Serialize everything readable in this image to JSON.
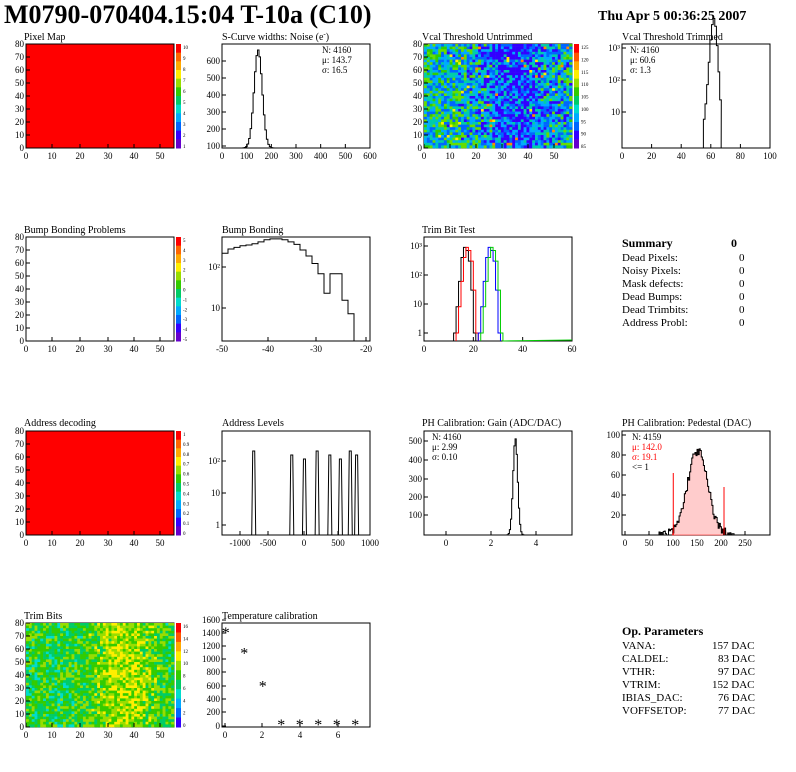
{
  "header": {
    "title": "M0790-070404.15:04 T-10a (C10)",
    "datetime": "Thu Apr  5 00:36:25 2007"
  },
  "colors": {
    "red_map": "#ff0000",
    "green_map": "#33dd44",
    "palette": [
      "#6600cc",
      "#3300ff",
      "#0066ff",
      "#00aaff",
      "#00ddcc",
      "#00cc66",
      "#33cc00",
      "#99dd00",
      "#ffee00",
      "#ffaa00",
      "#ff6600",
      "#ff0000"
    ]
  },
  "chart_data": [
    {
      "id": "pixel-map",
      "type": "heatmap",
      "title": "Pixel Map",
      "fill": "uniform red",
      "xticks": [
        "0",
        "10",
        "20",
        "30",
        "40",
        "50"
      ],
      "yticks": [
        "0",
        "10",
        "20",
        "30",
        "40",
        "50",
        "60",
        "70",
        "80"
      ],
      "palette_labels": [
        "10",
        "9",
        "8",
        "7",
        "6",
        "5",
        "4",
        "3",
        "2",
        "1"
      ]
    },
    {
      "id": "scurve",
      "type": "histogram",
      "title": "S-Curve widths: Noise (e",
      "title_sup": "-",
      "title_tail": ")",
      "xticks": [
        "0",
        "100",
        "200",
        "300",
        "400",
        "500",
        "600"
      ],
      "yticks": [
        "100",
        "200",
        "300",
        "400",
        "500",
        "600"
      ],
      "stats": [
        "N: 4160",
        "μ: 143.7",
        "σ: 16.5"
      ],
      "peak_x": 143.7,
      "peak_y": 660,
      "sigma": 16.5,
      "xlim": [
        0,
        600
      ],
      "ylim": [
        0,
        700
      ]
    },
    {
      "id": "vcal-untrimmed",
      "type": "heatmap",
      "title": "Vcal Threshold Untrimmed",
      "xticks": [
        "0",
        "10",
        "20",
        "30",
        "40",
        "50"
      ],
      "yticks": [
        "0",
        "10",
        "20",
        "30",
        "40",
        "50",
        "60",
        "70",
        "80"
      ],
      "palette_labels": [
        "125",
        "120",
        "115",
        "110",
        "105",
        "100",
        "95",
        "90",
        "85"
      ]
    },
    {
      "id": "vcal-trimmed",
      "type": "histogram",
      "title": "Vcal Threshold Trimmed",
      "xticks": [
        "0",
        "20",
        "40",
        "60",
        "80",
        "100"
      ],
      "yticks": [
        "10",
        "10²",
        "10³"
      ],
      "stats": [
        "N: 4160",
        "μ: 60.6",
        "σ:  1.3"
      ],
      "log_y": true,
      "peak_x": 60.6,
      "sigma": 1.3,
      "xlim": [
        0,
        100
      ]
    },
    {
      "id": "bump-problems",
      "type": "heatmap",
      "title": "Bump Bonding Problems",
      "fill": "empty",
      "xticks": [
        "0",
        "10",
        "20",
        "30",
        "40",
        "50"
      ],
      "yticks": [
        "0",
        "10",
        "20",
        "30",
        "40",
        "50",
        "60",
        "70",
        "80"
      ],
      "palette_labels": [
        "5",
        "4",
        "3",
        "2",
        "1",
        "0",
        "-1",
        "-2",
        "-3",
        "-4",
        "-5"
      ]
    },
    {
      "id": "bump-bonding",
      "type": "histogram",
      "title": "Bump Bonding",
      "xticks": [
        "-50",
        "-40",
        "-30",
        "-20"
      ],
      "yticks": [
        "10",
        "10²"
      ],
      "log_y": true,
      "xlim": [
        -50,
        -20
      ]
    },
    {
      "id": "trim-bit-test",
      "type": "histogram",
      "title": "Trim Bit Test",
      "xticks": [
        "0",
        "20",
        "40",
        "60"
      ],
      "yticks": [
        "1",
        "10",
        "10²",
        "10³"
      ],
      "log_y": true,
      "xlim": [
        0,
        60
      ]
    },
    {
      "id": "address-decoding",
      "type": "heatmap",
      "title": "Address decoding",
      "fill": "uniform red",
      "xticks": [
        "0",
        "10",
        "20",
        "30",
        "40",
        "50"
      ],
      "yticks": [
        "0",
        "10",
        "20",
        "30",
        "40",
        "50",
        "60",
        "70",
        "80"
      ],
      "palette_labels": [
        "1",
        "0.9",
        "0.8",
        "0.7",
        "0.6",
        "0.5",
        "0.4",
        "0.3",
        "0.2",
        "0.1",
        "0"
      ]
    },
    {
      "id": "address-levels",
      "type": "histogram",
      "title": "Address Levels",
      "xticks": [
        "-1000",
        "-500",
        "0",
        "500",
        "1000"
      ],
      "yticks": [
        "1",
        "10",
        "10²"
      ],
      "log_y": true,
      "xlim": [
        -1000,
        1000
      ],
      "peaks": [
        -650,
        -110,
        70,
        250,
        430,
        580,
        720,
        810
      ]
    },
    {
      "id": "ph-gain",
      "type": "histogram",
      "title": "PH Calibration: Gain (ADC/DAC)",
      "xticks": [
        "0",
        "2",
        "4"
      ],
      "yticks": [
        "100",
        "200",
        "300",
        "400",
        "500"
      ],
      "stats": [
        "N: 4160",
        "μ: 2.99",
        "σ: 0.10"
      ],
      "peak_x": 2.99,
      "peak_y": 520,
      "sigma": 0.1,
      "xlim": [
        -1,
        5.5
      ],
      "ylim": [
        0,
        560
      ]
    },
    {
      "id": "ph-pedestal",
      "type": "histogram",
      "title": "PH Calibration: Pedestal (DAC)",
      "xticks": [
        "0",
        "50",
        "100",
        "150",
        "200",
        "250"
      ],
      "yticks": [
        "20",
        "40",
        "60",
        "80",
        "100"
      ],
      "stats": [
        "N: 4159",
        "μ: 142.0",
        "σ: 19.1",
        "<= 1"
      ],
      "peak_x": 142.0,
      "peak_y": 85,
      "sigma": 19.1,
      "xlim": [
        0,
        280
      ],
      "ylim": [
        0,
        105
      ]
    },
    {
      "id": "trim-bits",
      "type": "heatmap",
      "title": "Trim Bits",
      "xticks": [
        "0",
        "10",
        "20",
        "30",
        "40",
        "50"
      ],
      "yticks": [
        "0",
        "10",
        "20",
        "30",
        "40",
        "50",
        "60",
        "70",
        "80"
      ],
      "palette_labels": [
        "16",
        "14",
        "12",
        "10",
        "8",
        "6",
        "4",
        "2",
        "0"
      ]
    },
    {
      "id": "temperature",
      "type": "scatter",
      "title": "Temperature calibration",
      "xticks": [
        "0",
        "2",
        "4",
        "6"
      ],
      "yticks": [
        "0",
        "200",
        "400",
        "600",
        "800",
        "1000",
        "1200",
        "1400",
        "1600"
      ],
      "x": [
        0,
        1,
        2,
        3,
        4,
        5,
        6,
        7
      ],
      "y": [
        1450,
        1130,
        620,
        30,
        30,
        30,
        30,
        30
      ],
      "xlim": [
        -0.2,
        7.8
      ],
      "ylim": [
        0,
        1600
      ]
    }
  ],
  "summary": {
    "title": "Summary",
    "total": "0",
    "rows": [
      {
        "label": "Dead Pixels:",
        "value": "0"
      },
      {
        "label": "Noisy Pixels:",
        "value": "0"
      },
      {
        "label": "Mask defects:",
        "value": "0"
      },
      {
        "label": "Dead Bumps:",
        "value": "0"
      },
      {
        "label": "Dead Trimbits:",
        "value": "0"
      },
      {
        "label": "Address Probl:",
        "value": "0"
      }
    ]
  },
  "op_params": {
    "title": "Op. Parameters",
    "rows": [
      {
        "label": "VANA:",
        "value": "157 DAC"
      },
      {
        "label": "CALDEL:",
        "value": "83 DAC"
      },
      {
        "label": "VTHR:",
        "value": "97 DAC"
      },
      {
        "label": "VTRIM:",
        "value": "152 DAC"
      },
      {
        "label": "IBIAS_DAC:",
        "value": "76 DAC"
      },
      {
        "label": "VOFFSETOP:",
        "value": "77 DAC"
      }
    ]
  }
}
